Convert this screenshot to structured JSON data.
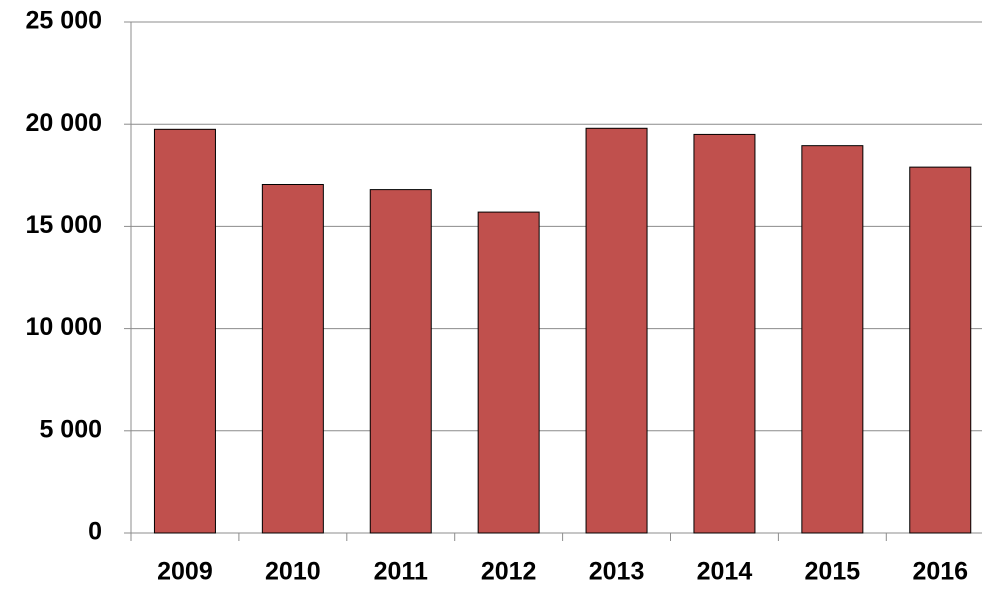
{
  "chart_data": {
    "type": "bar",
    "categories": [
      "2009",
      "2010",
      "2011",
      "2012",
      "2013",
      "2014",
      "2015",
      "2016"
    ],
    "values": [
      19750,
      17050,
      16800,
      15700,
      19800,
      19500,
      18950,
      17900
    ],
    "color": "#c0504d",
    "ylim": [
      0,
      25000
    ],
    "yticks": [
      0,
      {
        "value": 5000,
        "label": "5 000"
      },
      {
        "value": 10000,
        "label": "10 000"
      },
      {
        "value": 15000,
        "label": "15 000"
      },
      {
        "value": 20000,
        "label": "20 000"
      },
      {
        "value": 25000,
        "label": "25 000"
      }
    ],
    "grid": true
  }
}
